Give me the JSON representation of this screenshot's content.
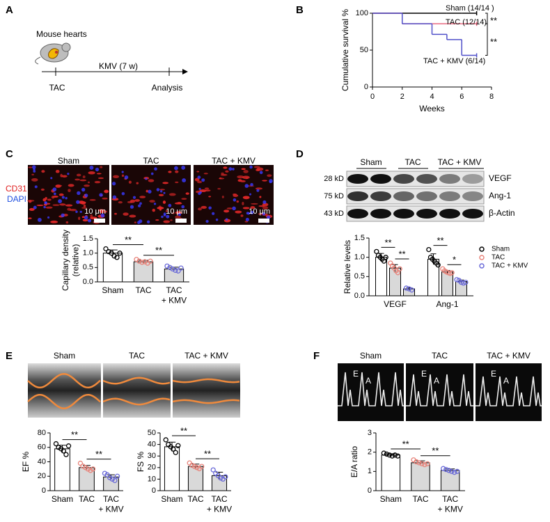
{
  "panel_labels": [
    "A",
    "B",
    "C",
    "D",
    "E",
    "F"
  ],
  "schematic": {
    "title": "Mouse hearts",
    "treatment": "KMV  (7 w)",
    "start": "TAC",
    "end": "Analysis"
  },
  "immunostaining": {
    "groups": [
      "Sham",
      "TAC",
      "TAC + KMV"
    ],
    "stain_cd31": "CD31",
    "stain_dapi": "DAPI",
    "scale_bar": "10 μm"
  },
  "western_blot": {
    "groups": [
      "Sham",
      "TAC",
      "TAC + KMV"
    ],
    "bands": [
      {
        "size": "28 kD",
        "protein": "VEGF"
      },
      {
        "size": "75 kD",
        "protein": "Ang-1"
      },
      {
        "size": "43 kD",
        "protein": "β-Actin"
      }
    ]
  },
  "echo": {
    "groups": [
      "Sham",
      "TAC",
      "TAC + KMV"
    ]
  },
  "doppler": {
    "groups": [
      "Sham",
      "TAC",
      "TAC + KMV"
    ],
    "peak_e": "E",
    "peak_a": "A"
  },
  "chart_data": [
    {
      "type": "line",
      "step": true,
      "xlabel": "Weeks",
      "ylabel": "Cumulative survival %",
      "x": [
        0,
        2,
        4,
        5,
        6,
        7
      ],
      "series": [
        {
          "name": "Sham (14/14 )",
          "color": "#000000",
          "values": [
            100,
            100,
            100,
            100,
            100,
            100
          ]
        },
        {
          "name": "TAC (12/14)",
          "color": "#e8677e",
          "values": [
            100,
            85.7,
            85.7,
            85.7,
            85.7,
            85.7
          ]
        },
        {
          "name": "TAC + KMV (6/14)",
          "color": "#4f4fc9",
          "values": [
            100,
            85.7,
            71.4,
            64.3,
            42.9,
            42.9
          ]
        }
      ],
      "xlim": [
        0,
        8
      ],
      "xticks": [
        0,
        2,
        4,
        6,
        8
      ],
      "ylim": [
        0,
        100
      ],
      "yticks": [
        0,
        50,
        100
      ],
      "annotations": [
        "**",
        "**"
      ]
    },
    {
      "type": "bar",
      "ylabel": "Capillary density\n(relative)",
      "categories": [
        "Sham",
        "TAC",
        "TAC\n+ KMV"
      ],
      "values": [
        1.0,
        0.7,
        0.45
      ],
      "errors": [
        0.11,
        0.05,
        0.06
      ],
      "points": [
        [
          1.15,
          1.05,
          1.0,
          0.9,
          0.85,
          1.0
        ],
        [
          0.78,
          0.72,
          0.68,
          0.7,
          0.65,
          0.72
        ],
        [
          0.55,
          0.5,
          0.45,
          0.4,
          0.38,
          0.48
        ]
      ],
      "colors": [
        "#ffffff",
        "#d9d9d9",
        "#d9d9d9"
      ],
      "point_colors": [
        "#000000",
        "#e8837a",
        "#6a6ad8"
      ],
      "ylim": [
        0,
        1.5
      ],
      "yticks": [
        {
          "value": 0,
          "label": "0.0"
        },
        0.5,
        {
          "value": 1,
          "label": "1.0"
        },
        1.5
      ],
      "annotations": [
        "**",
        "**"
      ]
    },
    {
      "type": "grouped_bar",
      "ylabel": "Relative levels",
      "categories": [
        "VEGF",
        "Ang-1"
      ],
      "legend": "right",
      "series": [
        {
          "name": "Sham",
          "bar_color": "#ffffff",
          "color": "#000000",
          "values": [
            1.0,
            0.95
          ],
          "errors": [
            0.1,
            0.14
          ],
          "points": [
            [
              1.15,
              1.05,
              1.0,
              0.95,
              0.9,
              1.0
            ],
            [
              1.2,
              1.0,
              0.95,
              0.9,
              0.85,
              0.8
            ]
          ]
        },
        {
          "name": "TAC",
          "bar_color": "#d9d9d9",
          "color": "#e8837a",
          "values": [
            0.72,
            0.62
          ],
          "errors": [
            0.09,
            0.04
          ],
          "points": [
            [
              0.85,
              0.78,
              0.72,
              0.65,
              0.6,
              0.7
            ],
            [
              0.7,
              0.65,
              0.62,
              0.6,
              0.58,
              0.6
            ]
          ]
        },
        {
          "name": "TAC + KMV",
          "bar_color": "#d9d9d9",
          "color": "#6a6ad8",
          "values": [
            0.18,
            0.37
          ],
          "errors": [
            0.03,
            0.04
          ],
          "points": [
            [
              0.2,
              0.18,
              0.15
            ],
            [
              0.42,
              0.4,
              0.35,
              0.33,
              0.35
            ]
          ]
        }
      ],
      "ylim": [
        0,
        1.5
      ],
      "yticks": [
        {
          "value": 0,
          "label": "0.0"
        },
        0.5,
        {
          "value": 1,
          "label": "1.0"
        },
        1.5
      ],
      "annotations": [
        "**",
        "**",
        "**",
        "*"
      ]
    },
    {
      "type": "bar",
      "ylabel": "EF %",
      "categories": [
        "Sham",
        "TAC",
        "TAC\n+ KMV"
      ],
      "values": [
        58,
        32,
        19
      ],
      "errors": [
        5,
        3,
        3
      ],
      "points": [
        [
          65,
          60,
          58,
          55,
          50,
          62
        ],
        [
          38,
          34,
          32,
          30,
          28,
          30
        ],
        [
          24,
          22,
          18,
          16,
          14,
          20
        ]
      ],
      "colors": [
        "#ffffff",
        "#d9d9d9",
        "#d9d9d9"
      ],
      "point_colors": [
        "#000000",
        "#e8837a",
        "#6a6ad8"
      ],
      "ylim": [
        0,
        80
      ],
      "yticks": [
        0,
        20,
        40,
        60,
        80
      ],
      "annotations": [
        "**",
        "**"
      ]
    },
    {
      "type": "bar",
      "ylabel": "FS %",
      "categories": [
        "Sham",
        "TAC",
        "TAC\n+ KMV"
      ],
      "values": [
        38,
        21,
        13
      ],
      "errors": [
        4,
        2,
        3
      ],
      "points": [
        [
          44,
          40,
          38,
          36,
          33,
          39
        ],
        [
          24,
          22,
          21,
          20,
          19,
          21
        ],
        [
          18,
          15,
          13,
          11,
          10,
          12
        ]
      ],
      "colors": [
        "#ffffff",
        "#d9d9d9",
        "#d9d9d9"
      ],
      "point_colors": [
        "#000000",
        "#e8837a",
        "#6a6ad8"
      ],
      "ylim": [
        0,
        50
      ],
      "yticks": [
        0,
        10,
        20,
        30,
        40,
        50
      ],
      "annotations": [
        "**",
        "**"
      ]
    },
    {
      "type": "bar",
      "ylabel": "E/A ratio",
      "categories": [
        "Sham",
        "TAC",
        "TAC\n+ KMV"
      ],
      "values": [
        1.85,
        1.45,
        1.05
      ],
      "errors": [
        0.07,
        0.1,
        0.08
      ],
      "points": [
        [
          1.95,
          1.9,
          1.85,
          1.8,
          1.85,
          1.8
        ],
        [
          1.6,
          1.5,
          1.45,
          1.4,
          1.35,
          1.4
        ],
        [
          1.15,
          1.1,
          1.05,
          1.0,
          0.95,
          1.0
        ]
      ],
      "colors": [
        "#ffffff",
        "#d9d9d9",
        "#d9d9d9"
      ],
      "point_colors": [
        "#000000",
        "#e8837a",
        "#6a6ad8"
      ],
      "ylim": [
        0,
        3
      ],
      "yticks": [
        0,
        1,
        2,
        3
      ],
      "annotations": [
        "**",
        "**"
      ]
    }
  ]
}
